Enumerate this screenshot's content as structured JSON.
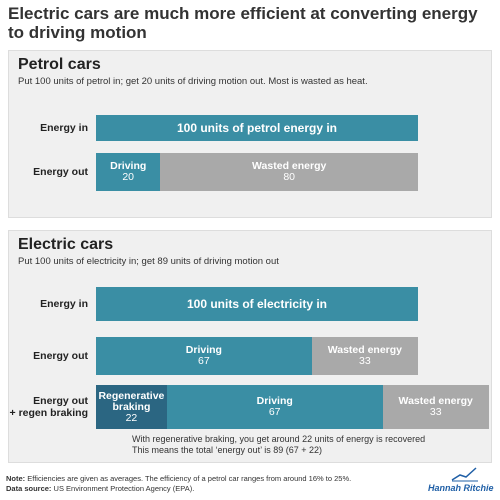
{
  "title": "Electric cars are much more efficient at converting energy to driving motion",
  "chart_data": [
    {
      "type": "bar",
      "orientation": "horizontal",
      "stacked": true,
      "title": "Petrol cars",
      "subtitle": "Put 100 units of petrol in; get 20 units of driving motion out. Most is wasted as heat.",
      "rows": [
        {
          "category": "Energy in",
          "segments": [
            {
              "name": "100 units of petrol energy in",
              "value": 100,
              "color": "#3a8ea4"
            }
          ]
        },
        {
          "category": "Energy out",
          "segments": [
            {
              "name": "Driving",
              "value": 20,
              "color": "#3a8ea4"
            },
            {
              "name": "Wasted energy",
              "value": 80,
              "color": "#a9a9a9"
            }
          ]
        }
      ]
    },
    {
      "type": "bar",
      "orientation": "horizontal",
      "stacked": true,
      "title": "Electric cars",
      "subtitle": "Put 100 units of electricity in; get 89 units of driving motion out",
      "rows": [
        {
          "category": "Energy in",
          "segments": [
            {
              "name": "100 units of electricity in",
              "value": 100,
              "color": "#3a8ea4"
            }
          ]
        },
        {
          "category": "Energy out",
          "segments": [
            {
              "name": "Driving",
              "value": 67,
              "color": "#3a8ea4"
            },
            {
              "name": "Wasted energy",
              "value": 33,
              "color": "#a9a9a9"
            }
          ]
        },
        {
          "category": "Energy out\n+ regen braking",
          "segments": [
            {
              "name": "Regenerative braking",
              "value": 22,
              "color": "#2b6682"
            },
            {
              "name": "Driving",
              "value": 67,
              "color": "#3a8ea4"
            },
            {
              "name": "Wasted energy",
              "value": 33,
              "color": "#a9a9a9"
            }
          ]
        }
      ],
      "annotation": [
        "With regenerative braking, you get around 22 units of energy is recovered",
        "This means the total ‘energy out’ is 89 (67 + 22)"
      ]
    }
  ],
  "footer": {
    "note_label": "Note:",
    "note": "Efficiencies are given as averages. The efficiency of a petrol car ranges from around 16% to 25%.",
    "source_label": "Data source:",
    "source": "US Environment Protection Agency (EPA).",
    "author": "Hannah Ritchie"
  }
}
